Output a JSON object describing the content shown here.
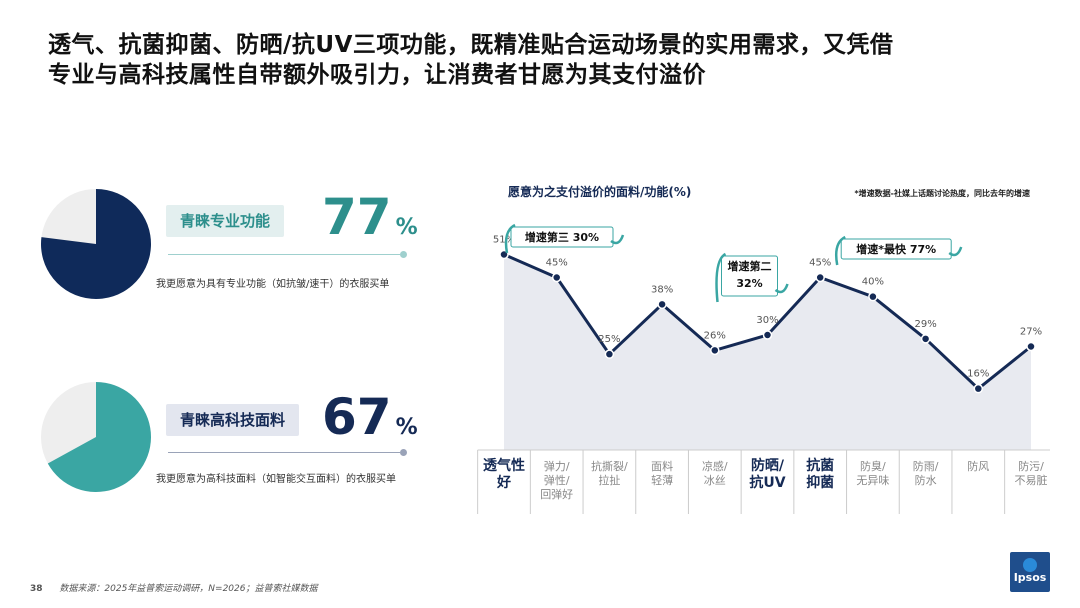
{
  "title": {
    "line1": "透气、抗菌抑菌、防晒/抗UV三项功能，既精准贴合运动场景的实用需求，又凭借",
    "line2": "专业与高科技属性自带额外吸引力，让消费者甘愿为其支付溢价"
  },
  "stats": [
    {
      "label": "青睐专业功能",
      "value": "77",
      "unit": "%",
      "desc": "我更愿意为具有专业功能（如抗皱/速干）的衣服买单",
      "fraction": 0.77,
      "color": "#0f2a5a"
    },
    {
      "label": "青睐高科技面料",
      "value": "67",
      "unit": "%",
      "desc": "我更愿意为高科技面料（如智能交互面料）的衣服买单",
      "fraction": 0.67,
      "color": "#3aa6a3"
    }
  ],
  "chart_data": {
    "type": "line",
    "title": "愿意为之支付溢价的面料/功能(%)",
    "note": "*增速数据-社媒上话题讨论热度，同比去年的增速",
    "categories": [
      [
        "透气性",
        "好"
      ],
      [
        "弹力/",
        "弹性/",
        "回弹好"
      ],
      [
        "抗撕裂/",
        "拉扯"
      ],
      [
        "面料",
        "轻薄"
      ],
      [
        "凉感/",
        "冰丝"
      ],
      [
        "防晒/",
        "抗UV"
      ],
      [
        "抗菌",
        "抑菌"
      ],
      [
        "防臭/",
        "无异味"
      ],
      [
        "防雨/",
        "防水"
      ],
      [
        "防风"
      ],
      [
        "防污/",
        "不易脏"
      ]
    ],
    "highlight": [
      0,
      5,
      6
    ],
    "values": [
      51,
      45,
      25,
      38,
      26,
      30,
      45,
      40,
      29,
      16,
      27
    ],
    "value_labels": [
      "51%",
      "45%",
      "25%",
      "38%",
      "26%",
      "30%",
      "45%",
      "40%",
      "29%",
      "16%",
      "27%"
    ],
    "ylim": [
      0,
      60
    ],
    "annotations": [
      {
        "index": 0,
        "lines": [
          "增速第三 30%"
        ]
      },
      {
        "index": 5,
        "lines": [
          "增速第二",
          "32%"
        ]
      },
      {
        "index": 6,
        "lines": [
          "增速*最快 77%"
        ]
      }
    ],
    "colors": {
      "line": "#152a55",
      "area": "#e8eaf0",
      "highlight_text": "#152a55",
      "text": "#555555",
      "arrow": "#3aa6a3"
    }
  },
  "footer": {
    "page": "38",
    "source": "数据来源：2025年益普索运动调研，N=2026；益普索社媒数据"
  },
  "logo": {
    "text": "Ipsos"
  }
}
